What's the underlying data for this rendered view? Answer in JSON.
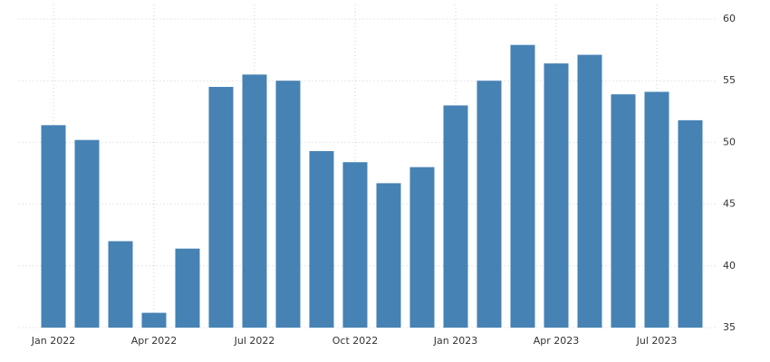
{
  "chart_data": {
    "type": "bar",
    "categories": [
      "Jan 2022",
      null,
      null,
      "Apr 2022",
      null,
      null,
      "Jul 2022",
      null,
      null,
      "Oct 2022",
      null,
      null,
      "Jan 2023",
      null,
      null,
      "Apr 2023",
      null,
      null,
      "Jul 2023",
      null
    ],
    "values": [
      51.4,
      50.2,
      42.0,
      36.2,
      41.4,
      54.5,
      55.5,
      55.0,
      49.3,
      48.4,
      46.7,
      48.0,
      53.0,
      55.0,
      57.9,
      56.4,
      57.1,
      53.9,
      54.1,
      51.8
    ],
    "color": "#4682b4",
    "ylim": [
      35,
      60
    ],
    "yticks": [
      35,
      40,
      45,
      50,
      55,
      60
    ],
    "grid": true
  }
}
